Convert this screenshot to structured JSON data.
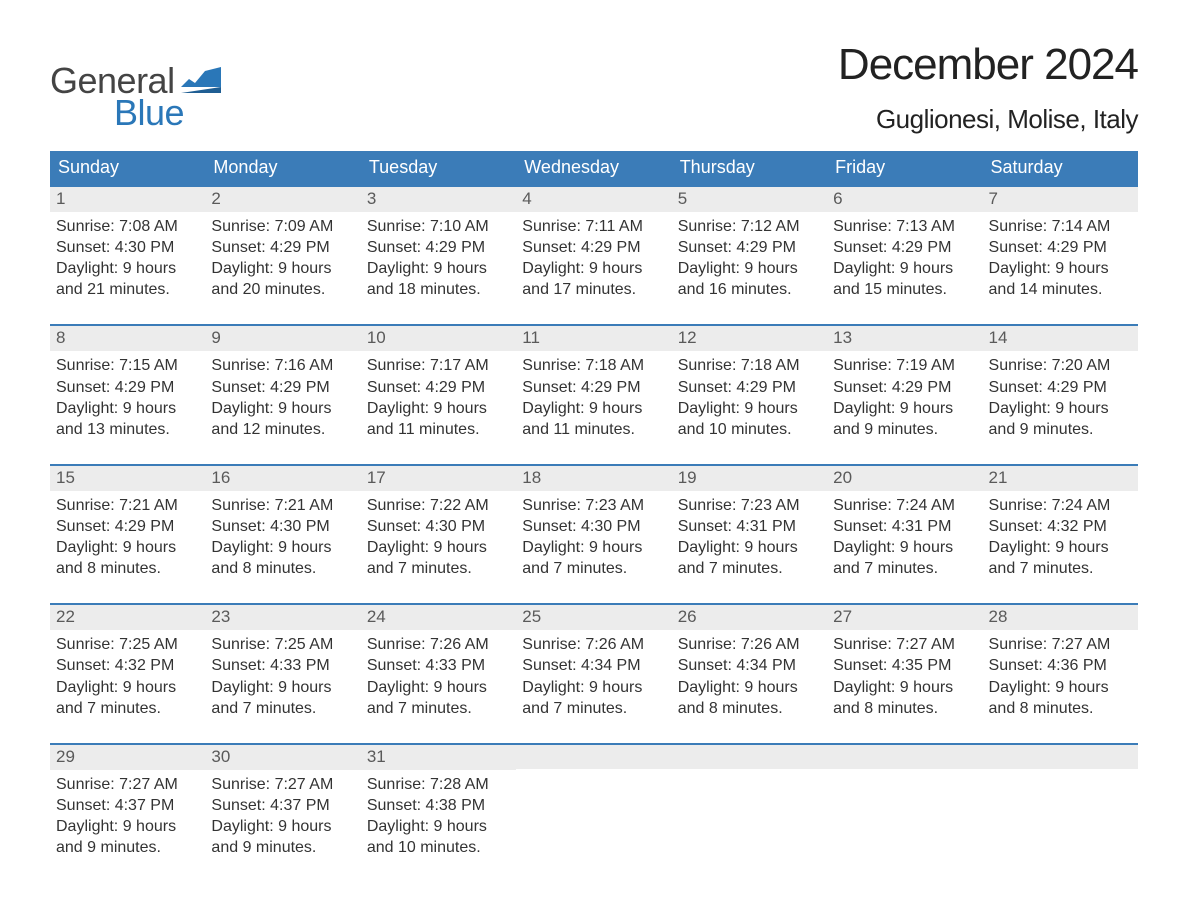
{
  "brand": {
    "text1": "General",
    "text2": "Blue"
  },
  "title": "December 2024",
  "location": "Guglionesi, Molise, Italy",
  "colors": {
    "header_bg": "#3b7cb8",
    "header_text": "#ffffff",
    "week_border": "#3b7cb8",
    "day_strip_bg": "#ececec",
    "day_number_color": "#5a5a5a",
    "text_color": "#333333",
    "logo_blue": "#2a77b8",
    "logo_gray": "#444444",
    "page_bg": "#ffffff"
  },
  "typography": {
    "title_fontsize": 44,
    "location_fontsize": 26,
    "weekday_fontsize": 18,
    "daynum_fontsize": 17,
    "body_fontsize": 16
  },
  "weekdays": [
    "Sunday",
    "Monday",
    "Tuesday",
    "Wednesday",
    "Thursday",
    "Friday",
    "Saturday"
  ],
  "weeks": [
    [
      {
        "day": "1",
        "sunrise": "Sunrise: 7:08 AM",
        "sunset": "Sunset: 4:30 PM",
        "daylight1": "Daylight: 9 hours",
        "daylight2": "and 21 minutes."
      },
      {
        "day": "2",
        "sunrise": "Sunrise: 7:09 AM",
        "sunset": "Sunset: 4:29 PM",
        "daylight1": "Daylight: 9 hours",
        "daylight2": "and 20 minutes."
      },
      {
        "day": "3",
        "sunrise": "Sunrise: 7:10 AM",
        "sunset": "Sunset: 4:29 PM",
        "daylight1": "Daylight: 9 hours",
        "daylight2": "and 18 minutes."
      },
      {
        "day": "4",
        "sunrise": "Sunrise: 7:11 AM",
        "sunset": "Sunset: 4:29 PM",
        "daylight1": "Daylight: 9 hours",
        "daylight2": "and 17 minutes."
      },
      {
        "day": "5",
        "sunrise": "Sunrise: 7:12 AM",
        "sunset": "Sunset: 4:29 PM",
        "daylight1": "Daylight: 9 hours",
        "daylight2": "and 16 minutes."
      },
      {
        "day": "6",
        "sunrise": "Sunrise: 7:13 AM",
        "sunset": "Sunset: 4:29 PM",
        "daylight1": "Daylight: 9 hours",
        "daylight2": "and 15 minutes."
      },
      {
        "day": "7",
        "sunrise": "Sunrise: 7:14 AM",
        "sunset": "Sunset: 4:29 PM",
        "daylight1": "Daylight: 9 hours",
        "daylight2": "and 14 minutes."
      }
    ],
    [
      {
        "day": "8",
        "sunrise": "Sunrise: 7:15 AM",
        "sunset": "Sunset: 4:29 PM",
        "daylight1": "Daylight: 9 hours",
        "daylight2": "and 13 minutes."
      },
      {
        "day": "9",
        "sunrise": "Sunrise: 7:16 AM",
        "sunset": "Sunset: 4:29 PM",
        "daylight1": "Daylight: 9 hours",
        "daylight2": "and 12 minutes."
      },
      {
        "day": "10",
        "sunrise": "Sunrise: 7:17 AM",
        "sunset": "Sunset: 4:29 PM",
        "daylight1": "Daylight: 9 hours",
        "daylight2": "and 11 minutes."
      },
      {
        "day": "11",
        "sunrise": "Sunrise: 7:18 AM",
        "sunset": "Sunset: 4:29 PM",
        "daylight1": "Daylight: 9 hours",
        "daylight2": "and 11 minutes."
      },
      {
        "day": "12",
        "sunrise": "Sunrise: 7:18 AM",
        "sunset": "Sunset: 4:29 PM",
        "daylight1": "Daylight: 9 hours",
        "daylight2": "and 10 minutes."
      },
      {
        "day": "13",
        "sunrise": "Sunrise: 7:19 AM",
        "sunset": "Sunset: 4:29 PM",
        "daylight1": "Daylight: 9 hours",
        "daylight2": "and 9 minutes."
      },
      {
        "day": "14",
        "sunrise": "Sunrise: 7:20 AM",
        "sunset": "Sunset: 4:29 PM",
        "daylight1": "Daylight: 9 hours",
        "daylight2": "and 9 minutes."
      }
    ],
    [
      {
        "day": "15",
        "sunrise": "Sunrise: 7:21 AM",
        "sunset": "Sunset: 4:29 PM",
        "daylight1": "Daylight: 9 hours",
        "daylight2": "and 8 minutes."
      },
      {
        "day": "16",
        "sunrise": "Sunrise: 7:21 AM",
        "sunset": "Sunset: 4:30 PM",
        "daylight1": "Daylight: 9 hours",
        "daylight2": "and 8 minutes."
      },
      {
        "day": "17",
        "sunrise": "Sunrise: 7:22 AM",
        "sunset": "Sunset: 4:30 PM",
        "daylight1": "Daylight: 9 hours",
        "daylight2": "and 7 minutes."
      },
      {
        "day": "18",
        "sunrise": "Sunrise: 7:23 AM",
        "sunset": "Sunset: 4:30 PM",
        "daylight1": "Daylight: 9 hours",
        "daylight2": "and 7 minutes."
      },
      {
        "day": "19",
        "sunrise": "Sunrise: 7:23 AM",
        "sunset": "Sunset: 4:31 PM",
        "daylight1": "Daylight: 9 hours",
        "daylight2": "and 7 minutes."
      },
      {
        "day": "20",
        "sunrise": "Sunrise: 7:24 AM",
        "sunset": "Sunset: 4:31 PM",
        "daylight1": "Daylight: 9 hours",
        "daylight2": "and 7 minutes."
      },
      {
        "day": "21",
        "sunrise": "Sunrise: 7:24 AM",
        "sunset": "Sunset: 4:32 PM",
        "daylight1": "Daylight: 9 hours",
        "daylight2": "and 7 minutes."
      }
    ],
    [
      {
        "day": "22",
        "sunrise": "Sunrise: 7:25 AM",
        "sunset": "Sunset: 4:32 PM",
        "daylight1": "Daylight: 9 hours",
        "daylight2": "and 7 minutes."
      },
      {
        "day": "23",
        "sunrise": "Sunrise: 7:25 AM",
        "sunset": "Sunset: 4:33 PM",
        "daylight1": "Daylight: 9 hours",
        "daylight2": "and 7 minutes."
      },
      {
        "day": "24",
        "sunrise": "Sunrise: 7:26 AM",
        "sunset": "Sunset: 4:33 PM",
        "daylight1": "Daylight: 9 hours",
        "daylight2": "and 7 minutes."
      },
      {
        "day": "25",
        "sunrise": "Sunrise: 7:26 AM",
        "sunset": "Sunset: 4:34 PM",
        "daylight1": "Daylight: 9 hours",
        "daylight2": "and 7 minutes."
      },
      {
        "day": "26",
        "sunrise": "Sunrise: 7:26 AM",
        "sunset": "Sunset: 4:34 PM",
        "daylight1": "Daylight: 9 hours",
        "daylight2": "and 8 minutes."
      },
      {
        "day": "27",
        "sunrise": "Sunrise: 7:27 AM",
        "sunset": "Sunset: 4:35 PM",
        "daylight1": "Daylight: 9 hours",
        "daylight2": "and 8 minutes."
      },
      {
        "day": "28",
        "sunrise": "Sunrise: 7:27 AM",
        "sunset": "Sunset: 4:36 PM",
        "daylight1": "Daylight: 9 hours",
        "daylight2": "and 8 minutes."
      }
    ],
    [
      {
        "day": "29",
        "sunrise": "Sunrise: 7:27 AM",
        "sunset": "Sunset: 4:37 PM",
        "daylight1": "Daylight: 9 hours",
        "daylight2": "and 9 minutes."
      },
      {
        "day": "30",
        "sunrise": "Sunrise: 7:27 AM",
        "sunset": "Sunset: 4:37 PM",
        "daylight1": "Daylight: 9 hours",
        "daylight2": "and 9 minutes."
      },
      {
        "day": "31",
        "sunrise": "Sunrise: 7:28 AM",
        "sunset": "Sunset: 4:38 PM",
        "daylight1": "Daylight: 9 hours",
        "daylight2": "and 10 minutes."
      },
      null,
      null,
      null,
      null
    ]
  ]
}
